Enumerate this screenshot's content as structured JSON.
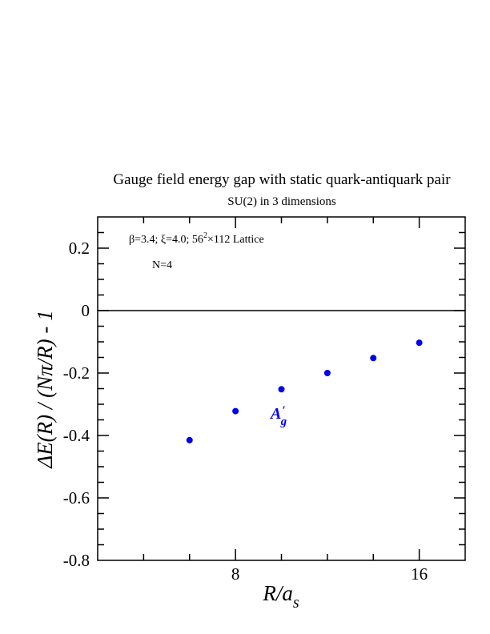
{
  "chart_data": {
    "type": "scatter",
    "title": "Gauge field energy gap with static quark-antiquark pair",
    "subtitle": "SU(2) in 3 dimensions",
    "xlabel_base": "R/a",
    "xlabel_sub": "s",
    "ylabel": "ΔE(R) / (Nπ/R) - 1",
    "xlim": [
      2,
      18
    ],
    "ylim": [
      -0.8,
      0.3
    ],
    "x_ticks": [
      8,
      16
    ],
    "x_tick_labels": [
      "8",
      "16"
    ],
    "y_ticks": [
      -0.8,
      -0.6,
      -0.4,
      -0.2,
      0,
      0.2
    ],
    "y_tick_labels": [
      "-0.8",
      "-0.6",
      "-0.4",
      "-0.2",
      "0",
      "0.2"
    ],
    "reference_line_y": 0,
    "notes": {
      "params": "β=3.4;  ξ=4.0; 56",
      "params_sup": "2",
      "params_tail": "×112 Lattice",
      "n": "N=4"
    },
    "series": [
      {
        "label_main": "A",
        "label_prime": "′",
        "label_sub": "g",
        "color": "#0000ee",
        "x": [
          6,
          8,
          10,
          12,
          14,
          16
        ],
        "y": [
          -0.415,
          -0.322,
          -0.252,
          -0.2,
          -0.152,
          -0.103
        ]
      }
    ]
  }
}
